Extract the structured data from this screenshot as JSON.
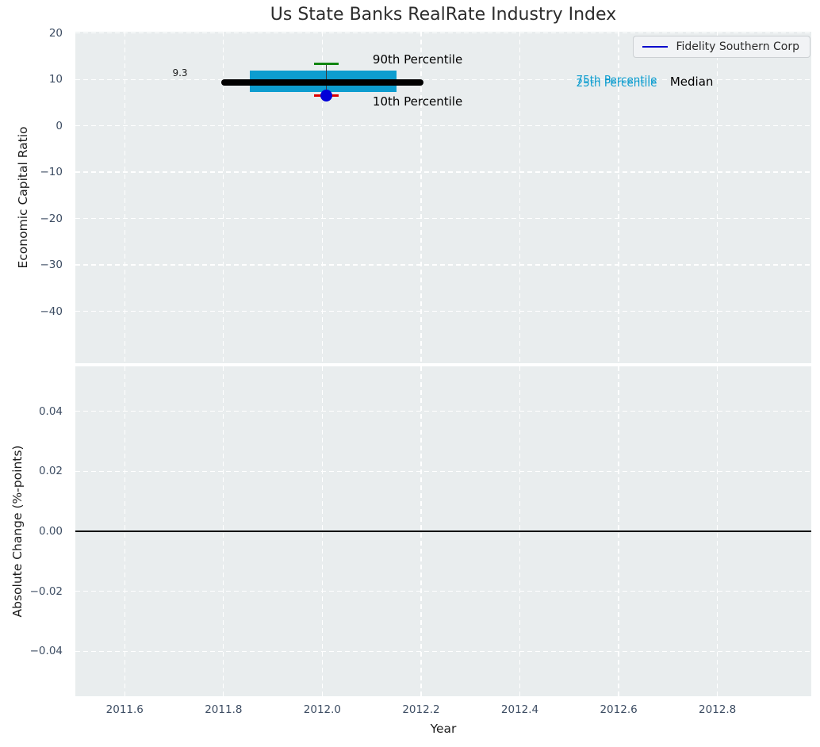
{
  "figure": {
    "title": "Us State Banks RealRate Industry Index",
    "background": "#ffffff",
    "plot_background": "#e9edee",
    "grid_color": "#ffffff"
  },
  "legend": {
    "label": "Fidelity Southern Corp",
    "line_color": "#0000cc",
    "position": "upper right"
  },
  "x_axis": {
    "label": "Year",
    "ticks": [
      {
        "v": 2011.6,
        "label": "2011.6"
      },
      {
        "v": 2011.8,
        "label": "2011.8"
      },
      {
        "v": 2012.0,
        "label": "2012.0"
      },
      {
        "v": 2012.2,
        "label": "2012.2"
      },
      {
        "v": 2012.4,
        "label": "2012.4"
      },
      {
        "v": 2012.6,
        "label": "2012.6"
      },
      {
        "v": 2012.8,
        "label": "2012.8"
      }
    ]
  },
  "chart_data": [
    {
      "type": "box_timeseries",
      "title": "Us State Banks RealRate Industry Index",
      "ylabel": "Economic Capital Ratio",
      "xlim": [
        2011.5,
        2012.99
      ],
      "ylim": [
        -51.2,
        20.3
      ],
      "grid": true,
      "yticks": [
        {
          "v": 20,
          "label": "20"
        },
        {
          "v": 10,
          "label": "10"
        },
        {
          "v": 0,
          "label": "0"
        },
        {
          "v": -10,
          "label": "−10"
        },
        {
          "v": -20,
          "label": "−20"
        },
        {
          "v": -30,
          "label": "−30"
        },
        {
          "v": -40,
          "label": "−40"
        }
      ],
      "box_summary": {
        "x": 2012.0,
        "p10": 6.5,
        "q25": 7.3,
        "median": 9.3,
        "q75": 11.9,
        "p90": 13.3,
        "median_label": "9.3"
      },
      "series": [
        {
          "name": "Fidelity Southern Corp",
          "color": "#0000d8",
          "points": [
            {
              "x": 2012.008,
              "y": 6.5
            }
          ]
        }
      ],
      "marks": [
        {
          "name": "iqr-box",
          "kind": "rect",
          "x1": 2011.853,
          "x2": 2012.15,
          "y1": 7.3,
          "y2": 11.9,
          "color": "#0d9dcf"
        },
        {
          "name": "whisker-line",
          "kind": "vline",
          "x": 2012.008,
          "y1": 6.5,
          "y2": 13.3,
          "color": "#3a3a3a",
          "w": 1.4
        },
        {
          "name": "median-line",
          "kind": "hline",
          "y": 9.3,
          "x1": 2011.795,
          "x2": 2012.205,
          "color": "#000000",
          "w": 8,
          "round": true
        },
        {
          "name": "p90-cap",
          "kind": "hline",
          "y": 13.3,
          "x1": 2011.983,
          "x2": 2012.033,
          "color": "#108510",
          "w": 3
        },
        {
          "name": "p10-cap",
          "kind": "hline",
          "y": 6.5,
          "x1": 2011.983,
          "x2": 2012.033,
          "color": "#dd0000",
          "w": 3
        },
        {
          "name": "series-dot",
          "kind": "dot",
          "x": 2012.008,
          "y": 6.5,
          "r": 7.5,
          "color": "#0000d8"
        }
      ],
      "annotations": [
        {
          "text": "9.3",
          "x": 2011.712,
          "y": 11.4,
          "color": "#1a1a1a",
          "size": 12,
          "anchor": "center"
        },
        {
          "text": "90th Percentile",
          "x": 2012.102,
          "y": 14.3,
          "color": "#000000",
          "size": 15,
          "anchor": "left"
        },
        {
          "text": "10th Percentile",
          "x": 2012.102,
          "y": 5.2,
          "color": "#000000",
          "size": 15,
          "anchor": "left"
        },
        {
          "text": "75th Percentile",
          "x": 2012.514,
          "y": 9.95,
          "color": "#0d9dcf",
          "size": 13.5,
          "anchor": "left"
        },
        {
          "text": "25th Percentile",
          "x": 2012.514,
          "y": 9.18,
          "color": "#0d9dcf",
          "size": 13.5,
          "anchor": "left"
        },
        {
          "text": "Median",
          "x": 2012.704,
          "y": 9.5,
          "color": "#000000",
          "size": 15,
          "anchor": "left"
        }
      ]
    },
    {
      "type": "line",
      "ylabel": "Absolute Change (%-points)",
      "xlim": [
        2011.5,
        2012.99
      ],
      "ylim": [
        -0.055,
        0.055
      ],
      "grid": true,
      "yticks": [
        {
          "v": 0.04,
          "label": "0.04"
        },
        {
          "v": 0.02,
          "label": "0.02"
        },
        {
          "v": 0.0,
          "label": "0.00"
        },
        {
          "v": -0.02,
          "label": "−0.02"
        },
        {
          "v": -0.04,
          "label": "−0.04"
        }
      ],
      "marks": [
        {
          "name": "zero-line",
          "kind": "hline",
          "y": 0.0,
          "x1": 2011.5,
          "x2": 2012.99,
          "color": "#000000",
          "w": 2
        }
      ],
      "annotations": []
    }
  ]
}
